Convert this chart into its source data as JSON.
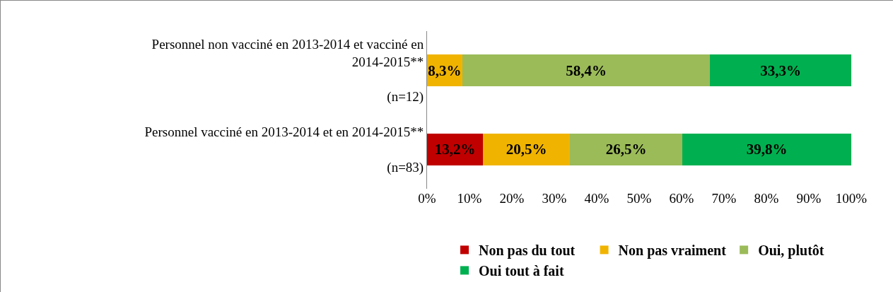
{
  "chart_data": {
    "type": "bar",
    "orientation": "horizontal",
    "stacked": true,
    "categories": [
      "Personnel non vacciné en 2013-2014 et vacciné en\n2014-2015**\n\n(n=12)",
      "Personnel vacciné en 2013-2014 et en 2014-2015**\n\n(n=83)"
    ],
    "series": [
      {
        "name": "Non pas du tout",
        "color": "#c00000",
        "values": [
          0,
          13.2
        ],
        "value_labels": [
          null,
          "13,2%"
        ]
      },
      {
        "name": "Non pas vraiment",
        "color": "#f0b400",
        "values": [
          8.3,
          20.5
        ],
        "value_labels": [
          "8,3%",
          "20,5%"
        ]
      },
      {
        "name": "Oui, plutôt",
        "color": "#9bbb59",
        "values": [
          58.4,
          26.5
        ],
        "value_labels": [
          "58,4%",
          "26,5%"
        ]
      },
      {
        "name": "Oui tout à fait",
        "color": "#00b050",
        "values": [
          33.3,
          39.8
        ],
        "value_labels": [
          "33,3%",
          "39,8%"
        ]
      }
    ],
    "xlim": [
      0,
      100
    ],
    "xticks": [
      {
        "value": 0,
        "label": "0%"
      },
      {
        "value": 10,
        "label": "10%"
      },
      {
        "value": 20,
        "label": "20%"
      },
      {
        "value": 30,
        "label": "30%"
      },
      {
        "value": 40,
        "label": "40%"
      },
      {
        "value": 50,
        "label": "50%"
      },
      {
        "value": 60,
        "label": "60%"
      },
      {
        "value": 70,
        "label": "70%"
      },
      {
        "value": 80,
        "label": "80%"
      },
      {
        "value": 90,
        "label": "90%"
      },
      {
        "value": 100,
        "label": "100%"
      }
    ],
    "grid": false,
    "legend": "bottom"
  }
}
